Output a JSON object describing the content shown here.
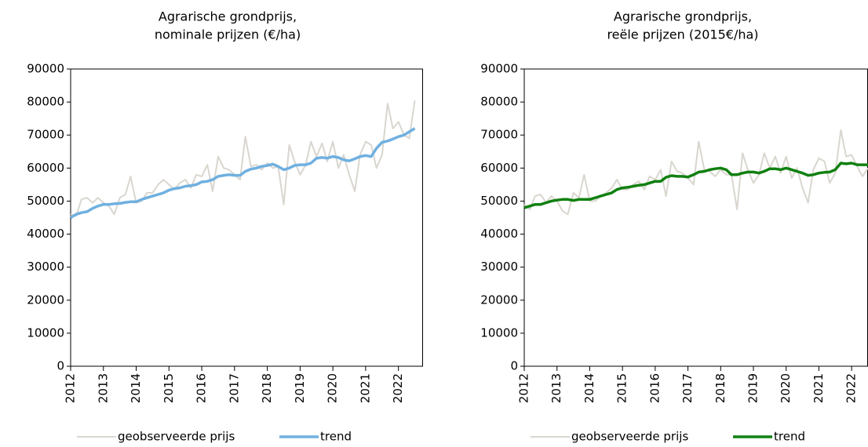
{
  "chart_data": [
    {
      "type": "line",
      "title": [
        "Agrarische grondprijs,",
        "nominale prijzen (€/ha)"
      ],
      "x": [
        2012,
        2012.17,
        2012.33,
        2012.5,
        2012.67,
        2012.83,
        2013,
        2013.17,
        2013.33,
        2013.5,
        2013.67,
        2013.83,
        2014,
        2014.17,
        2014.33,
        2014.5,
        2014.67,
        2014.83,
        2015,
        2015.17,
        2015.33,
        2015.5,
        2015.67,
        2015.83,
        2016,
        2016.17,
        2016.33,
        2016.5,
        2016.67,
        2016.83,
        2017,
        2017.17,
        2017.33,
        2017.5,
        2017.67,
        2017.83,
        2018,
        2018.17,
        2018.33,
        2018.5,
        2018.67,
        2018.83,
        2019,
        2019.17,
        2019.33,
        2019.5,
        2019.67,
        2019.83,
        2020,
        2020.17,
        2020.33,
        2020.5,
        2020.67,
        2020.83,
        2021,
        2021.17,
        2021.33,
        2021.5,
        2021.67,
        2021.83,
        2022,
        2022.17,
        2022.33,
        2022.5
      ],
      "series": [
        {
          "name": "geobserveerde prijs",
          "color": "#d9d6cf",
          "values": [
            46000,
            45500,
            50500,
            51000,
            49500,
            51000,
            49500,
            48500,
            46000,
            51000,
            52000,
            57500,
            49500,
            50000,
            52500,
            52500,
            55000,
            56500,
            55000,
            53500,
            55500,
            56500,
            54000,
            58000,
            57500,
            61000,
            53000,
            63500,
            60000,
            59500,
            58000,
            56500,
            69500,
            60500,
            61000,
            59500,
            61500,
            60000,
            60500,
            49000,
            67000,
            62000,
            58000,
            61000,
            68000,
            63500,
            67500,
            62000,
            68000,
            60000,
            64000,
            58000,
            53000,
            64000,
            68000,
            67000,
            60000,
            64000,
            79500,
            72000,
            74000,
            70000,
            69000,
            80500
          ]
        },
        {
          "name": "trend",
          "color": "#6fb0e0",
          "values": [
            45000,
            46000,
            46500,
            46800,
            47800,
            48500,
            49000,
            49000,
            49200,
            49300,
            49600,
            49800,
            49800,
            50500,
            51000,
            51500,
            52000,
            52500,
            53300,
            53800,
            54000,
            54500,
            54700,
            55000,
            55800,
            56000,
            56500,
            57500,
            57800,
            58000,
            57800,
            57800,
            59000,
            59700,
            60000,
            60500,
            60800,
            61200,
            60500,
            59500,
            60000,
            60800,
            61000,
            61000,
            61500,
            63000,
            63200,
            63000,
            63500,
            63200,
            62500,
            62200,
            62800,
            63500,
            63800,
            63500,
            66000,
            67800,
            68200,
            68800,
            69500,
            70000,
            71000,
            72000
          ]
        }
      ],
      "xlim": [
        2012,
        2022.75
      ],
      "xticks": [
        2012,
        2013,
        2014,
        2015,
        2016,
        2017,
        2018,
        2019,
        2020,
        2021,
        2022
      ],
      "ylim": [
        0,
        90000
      ],
      "yticks": [
        0,
        10000,
        20000,
        30000,
        40000,
        50000,
        60000,
        70000,
        80000,
        90000
      ]
    },
    {
      "type": "line",
      "title": [
        "Agrarische grondprijs,",
        "reële prijzen (2015€/ha)"
      ],
      "x": [
        2012,
        2012.17,
        2012.33,
        2012.5,
        2012.67,
        2012.83,
        2013,
        2013.17,
        2013.33,
        2013.5,
        2013.67,
        2013.83,
        2014,
        2014.17,
        2014.33,
        2014.5,
        2014.67,
        2014.83,
        2015,
        2015.17,
        2015.33,
        2015.5,
        2015.67,
        2015.83,
        2016,
        2016.17,
        2016.33,
        2016.5,
        2016.67,
        2016.83,
        2017,
        2017.17,
        2017.33,
        2017.5,
        2017.67,
        2017.83,
        2018,
        2018.17,
        2018.33,
        2018.5,
        2018.67,
        2018.83,
        2019,
        2019.17,
        2019.33,
        2019.5,
        2019.67,
        2019.83,
        2020,
        2020.17,
        2020.33,
        2020.5,
        2020.67,
        2020.83,
        2021,
        2021.17,
        2021.33,
        2021.5,
        2021.67,
        2021.83,
        2022,
        2022.17,
        2022.33,
        2022.5
      ],
      "series": [
        {
          "name": "geobserveerde prijs",
          "color": "#d9d6cf",
          "values": [
            49000,
            47500,
            51500,
            52000,
            49500,
            51500,
            50000,
            47000,
            46000,
            52500,
            51000,
            58000,
            50000,
            50000,
            51500,
            52500,
            54000,
            56500,
            53500,
            53500,
            55000,
            56000,
            53500,
            57500,
            56500,
            59500,
            51500,
            62000,
            59000,
            58500,
            57000,
            55000,
            68000,
            59500,
            59000,
            57500,
            59500,
            58000,
            58000,
            47500,
            64500,
            59500,
            55500,
            58000,
            64500,
            60000,
            63500,
            58500,
            63500,
            57000,
            60000,
            54000,
            49500,
            59500,
            63000,
            62000,
            55500,
            58500,
            71500,
            63500,
            64000,
            60500,
            57500,
            60000
          ]
        },
        {
          "name": "trend",
          "color": "#108010",
          "values": [
            48000,
            48500,
            49000,
            49000,
            49500,
            50000,
            50300,
            50500,
            50500,
            50200,
            50500,
            50500,
            50500,
            51000,
            51500,
            52000,
            52500,
            53500,
            54000,
            54200,
            54500,
            54800,
            55000,
            55500,
            56000,
            56000,
            57200,
            57700,
            57500,
            57500,
            57300,
            58000,
            58800,
            59000,
            59500,
            59800,
            60000,
            59500,
            58000,
            58000,
            58500,
            58800,
            58800,
            58500,
            59000,
            59800,
            59800,
            59500,
            60000,
            59500,
            59000,
            58500,
            57800,
            58000,
            58500,
            58700,
            58800,
            59500,
            61500,
            61300,
            61500,
            61000,
            61000,
            61000
          ]
        }
      ],
      "xlim": [
        2012,
        2022.5
      ],
      "xticks": [
        2012,
        2013,
        2014,
        2015,
        2016,
        2017,
        2018,
        2019,
        2020,
        2021,
        2022
      ],
      "ylim": [
        0,
        90000
      ],
      "yticks": [
        0,
        10000,
        20000,
        30000,
        40000,
        50000,
        60000,
        70000,
        80000,
        90000
      ]
    }
  ]
}
